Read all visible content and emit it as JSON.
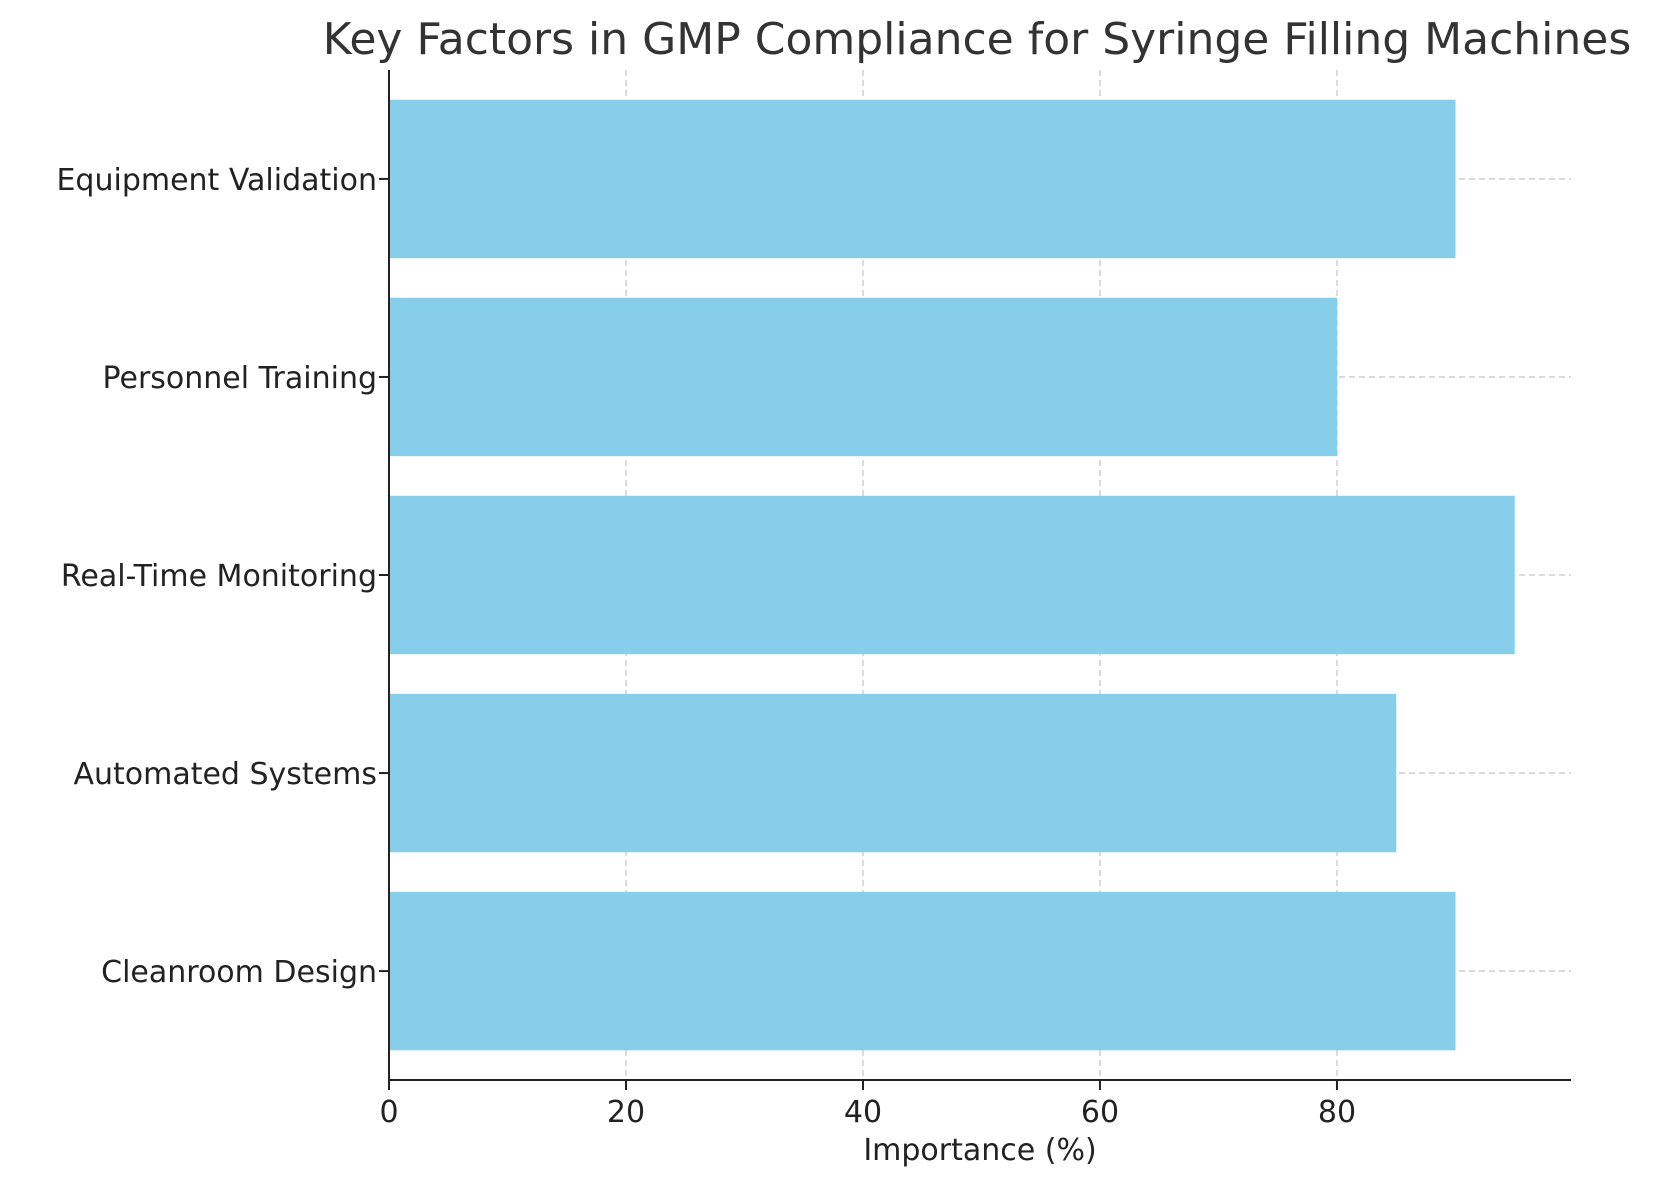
{
  "chart_data": {
    "type": "bar",
    "orientation": "horizontal",
    "title": "Key Factors in GMP Compliance for Syringe Filling Machines",
    "xlabel": "Importance (%)",
    "ylabel": "",
    "categories": [
      "Cleanroom Design",
      "Automated Systems",
      "Real-Time Monitoring",
      "Personnel Training",
      "Equipment Validation"
    ],
    "values": [
      90,
      85,
      95,
      80,
      90
    ],
    "xlim": [
      0,
      99.75
    ],
    "xticks": [
      0,
      20,
      40,
      60,
      80
    ],
    "grid": true,
    "bar_color": "#87ceeb"
  }
}
